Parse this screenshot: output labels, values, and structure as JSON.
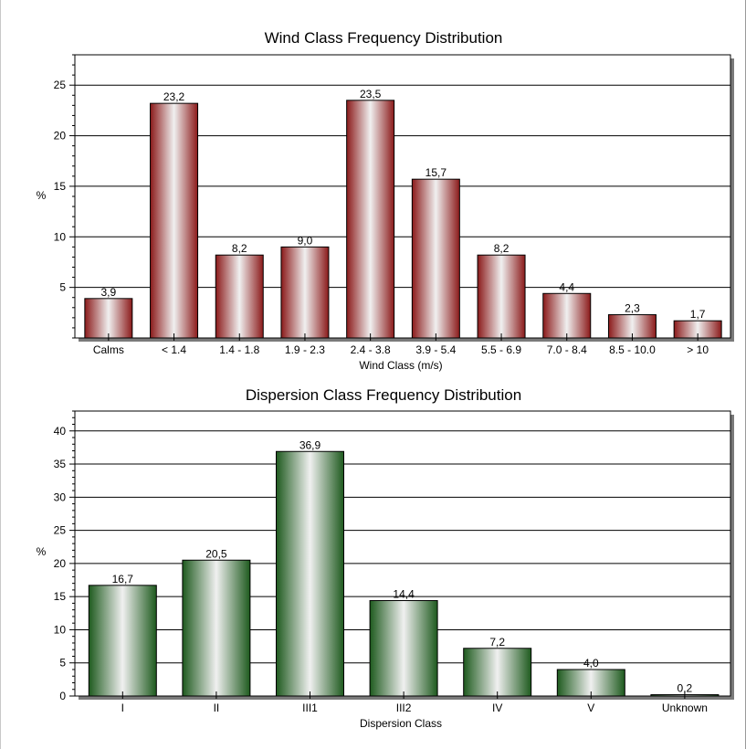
{
  "chart_data": [
    {
      "type": "bar",
      "title": "Wind Class Frequency Distribution",
      "xlabel": "Wind Class (m/s)",
      "ylabel": "%",
      "categories": [
        "Calms",
        "< 1.4",
        "1.4 - 1.8",
        "1.9 - 2.3",
        "2.4 - 3.8",
        "3.9 - 5.4",
        "5.5 - 6.9",
        "7.0 - 8.4",
        "8.5 - 10.0",
        "> 10"
      ],
      "values": [
        3.9,
        23.2,
        8.2,
        9.0,
        23.5,
        15.7,
        8.2,
        4.4,
        2.3,
        1.7
      ],
      "value_labels": [
        "3,9",
        "23,2",
        "8,2",
        "9,0",
        "23,5",
        "15,7",
        "8,2",
        "4,4",
        "2,3",
        "1,7"
      ],
      "ylim": [
        0,
        28
      ],
      "yticks": [
        5,
        10,
        15,
        20,
        25
      ],
      "grid": true,
      "bar_color": "#8b1a1a",
      "bar_highlight": "#f0f0f0"
    },
    {
      "type": "bar",
      "title": "Dispersion Class Frequency Distribution",
      "xlabel": "Dispersion Class",
      "ylabel": "%",
      "categories": [
        "I",
        "II",
        "III1",
        "III2",
        "IV",
        "V",
        "Unknown"
      ],
      "values": [
        16.7,
        20.5,
        36.9,
        14.4,
        7.2,
        4.0,
        0.2
      ],
      "value_labels": [
        "16,7",
        "20,5",
        "36,9",
        "14,4",
        "7,2",
        "4,0",
        "0,2"
      ],
      "ylim": [
        0,
        43
      ],
      "yticks": [
        0,
        5,
        10,
        15,
        20,
        25,
        30,
        35,
        40
      ],
      "grid": true,
      "bar_color": "#1e5a1e",
      "bar_highlight": "#f0f0f0"
    }
  ]
}
